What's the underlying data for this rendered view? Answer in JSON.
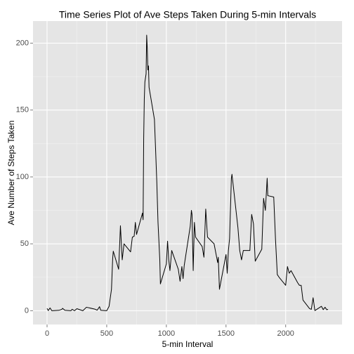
{
  "chart_data": {
    "type": "line",
    "title": "Time Series Plot of Ave Steps Taken During 5-min Intervals",
    "x_label": "5-min Interval",
    "y_label": "Ave Number of Steps Taken",
    "x": [
      0,
      10,
      25,
      40,
      55,
      100,
      125,
      130,
      150,
      200,
      210,
      230,
      250,
      300,
      330,
      400,
      420,
      440,
      450,
      500,
      520,
      540,
      550,
      555,
      600,
      615,
      630,
      645,
      700,
      715,
      730,
      740,
      750,
      800,
      805,
      810,
      815,
      820,
      830,
      835,
      840,
      845,
      850,
      855,
      900,
      910,
      920,
      930,
      945,
      950,
      1000,
      1010,
      1020,
      1030,
      1045,
      1100,
      1115,
      1130,
      1140,
      1150,
      1200,
      1210,
      1215,
      1225,
      1235,
      1245,
      1300,
      1315,
      1330,
      1345,
      1400,
      1415,
      1430,
      1435,
      1445,
      1500,
      1510,
      1520,
      1530,
      1545,
      1550,
      1600,
      1615,
      1630,
      1645,
      1700,
      1715,
      1730,
      1745,
      1800,
      1815,
      1830,
      1845,
      1850,
      1900,
      1915,
      1930,
      1945,
      2000,
      2015,
      2030,
      2045,
      2100,
      2115,
      2130,
      2145,
      2200,
      2215,
      2230,
      2245,
      2300,
      2315,
      2330,
      2345,
      2355
    ],
    "series": [
      {
        "color": "#000000",
        "values": [
          1.7,
          0.1,
          2.1,
          0,
          0.1,
          0.3,
          1.1,
          1.8,
          0.3,
          0,
          1.1,
          0,
          1.5,
          0,
          2.6,
          1.2,
          0.4,
          3,
          0.3,
          0,
          3.3,
          16,
          39,
          44.5,
          31,
          63.5,
          38,
          50,
          44,
          55,
          55.7,
          66,
          57,
          73,
          68,
          129,
          158,
          171,
          177,
          206,
          196,
          180,
          183,
          167,
          143,
          120,
          96,
          66,
          38,
          20,
          35,
          52,
          38,
          30,
          45,
          31,
          22,
          33,
          24,
          34,
          63,
          75,
          72,
          30,
          66,
          55,
          48,
          40,
          76,
          55,
          50,
          43,
          36,
          40,
          16,
          42,
          28,
          45,
          54,
          99,
          102,
          62,
          45,
          38,
          45,
          45,
          72,
          65,
          37,
          46,
          84,
          75,
          99,
          86,
          85,
          53,
          27,
          25,
          19,
          33,
          28,
          30,
          21,
          19,
          19,
          8,
          1.6,
          1,
          9.7,
          0.1,
          3.3,
          0.8,
          2.6,
          0.7,
          1.1
        ]
      }
    ],
    "xlim": [
      -117.75,
      2472.75
    ],
    "ylim": [
      -10.3,
      216.5
    ],
    "xticks": [
      0,
      500,
      1000,
      1500,
      2000
    ],
    "yticks": [
      0,
      50,
      100,
      150,
      200
    ],
    "xminor": [
      250,
      750,
      1250,
      1750,
      2250
    ],
    "yminor": [
      25,
      75,
      125,
      175
    ],
    "grid": true
  }
}
